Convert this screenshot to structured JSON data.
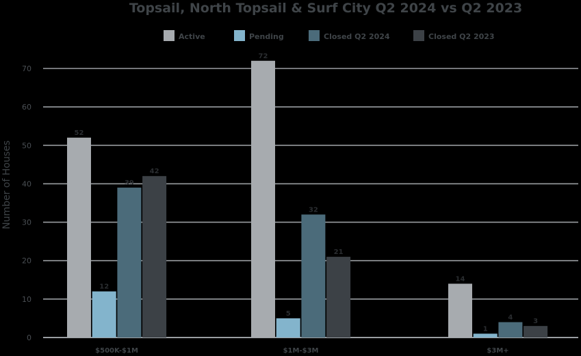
{
  "chart_data": {
    "type": "bar",
    "title": "Topsail, North Topsail & Surf City Q2 2024 vs Q2 2023",
    "ylabel": "Number of Houses",
    "xlabel": "",
    "ylim": [
      0,
      70
    ],
    "yticks": [
      0,
      10,
      20,
      30,
      40,
      50,
      60,
      70
    ],
    "grid": true,
    "legend_position": "top",
    "categories": [
      "$500K-$1M",
      "$1M-$3M",
      "$3M+"
    ],
    "series": [
      {
        "name": "Active",
        "color": "#a7abaf",
        "values": [
          52,
          72,
          14
        ],
        "labels": [
          "52",
          "72",
          "14"
        ]
      },
      {
        "name": "Pending",
        "color": "#83b4cc",
        "values": [
          12,
          5,
          1
        ],
        "labels": [
          "12",
          "5",
          "1"
        ]
      },
      {
        "name": "Closed Q2 2024",
        "color": "#4b6b7a",
        "values": [
          39,
          32,
          4
        ],
        "labels": [
          "39",
          "32",
          "4"
        ]
      },
      {
        "name": "Closed Q2 2023",
        "color": "#3c4146",
        "values": [
          42,
          21,
          3
        ],
        "labels": [
          "42",
          "21",
          "3"
        ]
      }
    ]
  }
}
